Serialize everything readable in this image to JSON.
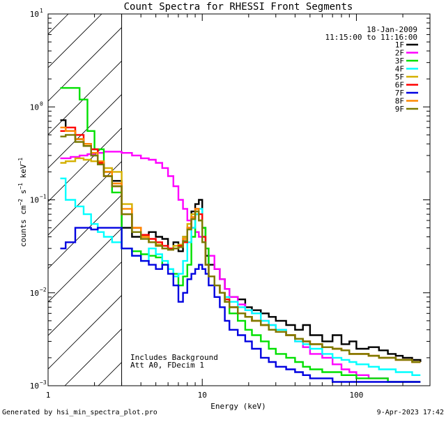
{
  "chart_data": {
    "type": "line",
    "title": "Count Spectra for RHESSI Front Segments",
    "xlabel": "Energy (keV)",
    "ylabel_parts": {
      "base": "counts cm",
      "exp1": "−2",
      "mid": " s",
      "exp2": "−1",
      "tail": " keV",
      "exp3": "−1"
    },
    "x_scale": "log",
    "y_scale": "log",
    "xlim": [
      1,
      300
    ],
    "ylim": [
      0.001,
      10
    ],
    "x_ticks": [
      {
        "value": 1,
        "label": "1"
      },
      {
        "value": 10,
        "label": "10"
      },
      {
        "value": 100,
        "label": "100"
      }
    ],
    "y_ticks": [
      {
        "value": 0.001,
        "base": "10",
        "exp": "−3"
      },
      {
        "value": 0.01,
        "base": "10",
        "exp": "−2"
      },
      {
        "value": 0.1,
        "base": "10",
        "exp": "−1"
      },
      {
        "value": 1,
        "base": "10",
        "exp": "0"
      },
      {
        "value": 10,
        "base": "10",
        "exp": "1"
      }
    ],
    "date": "18-Jan-2009",
    "time_range": "11:15:00 to 11:16:00",
    "hatched_region": {
      "x_min": 1,
      "x_max": 3
    },
    "annotations": [
      "Includes Background",
      "Att A0, FDecim 1"
    ],
    "series": [
      {
        "name": "1F",
        "color": "#000000",
        "x": [
          1.2,
          1.3,
          1.5,
          1.7,
          1.9,
          2.1,
          2.3,
          2.6,
          3.0,
          3.5,
          4.0,
          4.5,
          5.0,
          5.5,
          6.0,
          6.5,
          7.0,
          7.5,
          8.0,
          8.5,
          9.0,
          9.5,
          10.0,
          10.5,
          11.0,
          12,
          13,
          14,
          15,
          17,
          19,
          21,
          24,
          27,
          30,
          35,
          40,
          45,
          50,
          60,
          70,
          80,
          90,
          100,
          120,
          140,
          160,
          180,
          200,
          230,
          260
        ],
        "y": [
          0.72,
          0.55,
          0.45,
          0.38,
          0.3,
          0.25,
          0.2,
          0.16,
          0.05,
          0.04,
          0.042,
          0.045,
          0.04,
          0.038,
          0.03,
          0.035,
          0.028,
          0.04,
          0.05,
          0.075,
          0.09,
          0.1,
          0.05,
          0.025,
          0.02,
          0.018,
          0.014,
          0.011,
          0.009,
          0.0085,
          0.007,
          0.0065,
          0.006,
          0.0055,
          0.005,
          0.0045,
          0.004,
          0.0045,
          0.0035,
          0.003,
          0.0035,
          0.0028,
          0.003,
          0.0025,
          0.0026,
          0.0024,
          0.0022,
          0.0021,
          0.002,
          0.0019,
          0.0018
        ]
      },
      {
        "name": "2F",
        "color": "#ff00ff",
        "x": [
          1.2,
          1.4,
          1.6,
          1.8,
          2.0,
          2.3,
          2.6,
          3.0,
          3.5,
          4.0,
          4.5,
          5.0,
          5.5,
          6.0,
          6.5,
          7.0,
          7.5,
          8.0,
          8.5,
          9.0,
          9.5,
          10.0,
          10.5,
          11.0,
          12,
          13,
          14,
          15,
          17,
          19,
          21,
          24,
          27,
          30,
          35,
          40,
          45,
          50,
          60,
          70,
          80,
          90,
          100,
          120,
          140,
          160,
          180,
          200,
          230,
          260
        ],
        "y": [
          0.28,
          0.29,
          0.3,
          0.31,
          0.32,
          0.33,
          0.33,
          0.32,
          0.3,
          0.28,
          0.27,
          0.25,
          0.22,
          0.18,
          0.14,
          0.1,
          0.08,
          0.06,
          0.05,
          0.045,
          0.04,
          0.035,
          0.03,
          0.025,
          0.018,
          0.014,
          0.011,
          0.009,
          0.0075,
          0.0065,
          0.006,
          0.005,
          0.0045,
          0.004,
          0.0035,
          0.003,
          0.0026,
          0.0022,
          0.002,
          0.0017,
          0.0015,
          0.0014,
          0.0013,
          0.0012,
          0.0012,
          0.0011,
          0.0011,
          0.0011,
          0.0011,
          0.0011
        ]
      },
      {
        "name": "3F",
        "color": "#00e000",
        "x": [
          1.2,
          1.4,
          1.6,
          1.8,
          2.0,
          2.3,
          2.6,
          3.0,
          3.5,
          4.0,
          4.5,
          5.0,
          5.5,
          6.0,
          6.5,
          7.0,
          7.5,
          8.0,
          8.5,
          9.0,
          9.5,
          10.0,
          10.5,
          11.0,
          12,
          13,
          14,
          15,
          17,
          19,
          21,
          24,
          27,
          30,
          35,
          40,
          45,
          50,
          60,
          70,
          80,
          90,
          100,
          120,
          140,
          160,
          180,
          200,
          230,
          260
        ],
        "y": [
          1.6,
          1.6,
          1.2,
          0.55,
          0.35,
          0.2,
          0.12,
          0.03,
          0.028,
          0.026,
          0.025,
          0.024,
          0.02,
          0.018,
          0.016,
          0.012,
          0.015,
          0.02,
          0.04,
          0.07,
          0.06,
          0.05,
          0.03,
          0.015,
          0.012,
          0.01,
          0.008,
          0.006,
          0.005,
          0.004,
          0.0035,
          0.003,
          0.0025,
          0.0022,
          0.002,
          0.0018,
          0.0016,
          0.0015,
          0.0014,
          0.0014,
          0.0013,
          0.0013,
          0.0012,
          0.0012,
          0.0012,
          0.0011,
          0.0011,
          0.0011,
          0.0011,
          0.0011
        ]
      },
      {
        "name": "4F",
        "color": "#00ffff",
        "x": [
          1.2,
          1.3,
          1.5,
          1.7,
          1.9,
          2.1,
          2.3,
          2.6,
          3.0,
          3.5,
          4.0,
          4.5,
          5.0,
          5.5,
          6.0,
          6.5,
          7.0,
          7.5,
          8.0,
          8.5,
          9.0,
          9.5,
          10.0,
          10.5,
          11.0,
          12,
          13,
          14,
          15,
          17,
          19,
          21,
          24,
          27,
          30,
          35,
          40,
          45,
          50,
          60,
          70,
          80,
          90,
          100,
          120,
          140,
          160,
          180,
          200,
          230,
          260
        ],
        "y": [
          0.17,
          0.1,
          0.085,
          0.07,
          0.055,
          0.045,
          0.04,
          0.035,
          0.03,
          0.025,
          0.022,
          0.03,
          0.026,
          0.022,
          0.018,
          0.015,
          0.016,
          0.022,
          0.035,
          0.05,
          0.07,
          0.08,
          0.04,
          0.02,
          0.015,
          0.012,
          0.01,
          0.009,
          0.008,
          0.007,
          0.0065,
          0.006,
          0.005,
          0.0045,
          0.004,
          0.0035,
          0.003,
          0.0028,
          0.0025,
          0.0022,
          0.002,
          0.0019,
          0.0018,
          0.0017,
          0.0016,
          0.0015,
          0.0015,
          0.0014,
          0.0014,
          0.0013,
          0.0013
        ]
      },
      {
        "name": "5F",
        "color": "#d4b000",
        "x": [
          1.2,
          1.3,
          1.5,
          1.7,
          1.9,
          2.1,
          2.3,
          2.6,
          3.0,
          3.5,
          4.0,
          4.5,
          5.0,
          5.5,
          6.0,
          6.5,
          7.0,
          7.5,
          8.0,
          8.5,
          9.0,
          9.5,
          10.0,
          10.5,
          11.0,
          12,
          13,
          14,
          15,
          17,
          19,
          21,
          24,
          27,
          30,
          35,
          40,
          45,
          50,
          60,
          70,
          80,
          90,
          100,
          120,
          140,
          160,
          180,
          200,
          230,
          260
        ],
        "y": [
          0.25,
          0.26,
          0.28,
          0.27,
          0.26,
          0.24,
          0.22,
          0.2,
          0.09,
          0.05,
          0.04,
          0.035,
          0.033,
          0.03,
          0.03,
          0.032,
          0.033,
          0.04,
          0.055,
          0.07,
          0.075,
          0.06,
          0.035,
          0.02,
          0.015,
          0.012,
          0.01,
          0.008,
          0.007,
          0.006,
          0.0055,
          0.005,
          0.0045,
          0.004,
          0.0038,
          0.0035,
          0.0032,
          0.003,
          0.0028,
          0.0026,
          0.0025,
          0.0024,
          0.0022,
          0.0022,
          0.0021,
          0.002,
          0.002,
          0.0019,
          0.0019,
          0.0018,
          0.0018
        ]
      },
      {
        "name": "6F",
        "color": "#ff0000",
        "x": [
          1.2,
          1.3,
          1.5,
          1.7,
          1.9,
          2.1,
          2.3,
          2.6,
          3.0,
          3.5,
          4.0,
          4.5,
          5.0,
          5.5,
          6.0,
          6.5,
          7.0,
          7.5,
          8.0,
          8.5,
          9.0,
          9.5,
          10.0,
          10.5,
          11.0,
          12,
          13,
          14,
          15,
          17,
          19,
          21,
          24,
          27,
          30,
          35,
          40,
          45,
          50,
          60,
          70,
          80,
          90,
          100,
          120,
          140,
          160,
          180,
          200,
          230,
          260
        ],
        "y": [
          0.55,
          0.6,
          0.5,
          0.4,
          0.35,
          0.25,
          0.18,
          0.14,
          0.07,
          0.05,
          0.042,
          0.038,
          0.035,
          0.032,
          0.03,
          0.03,
          0.032,
          0.035,
          0.05,
          0.065,
          0.08,
          0.07,
          0.04,
          0.02,
          0.015,
          0.012,
          0.01,
          0.0085,
          0.007,
          0.006,
          0.0055,
          0.005,
          0.0045,
          0.004,
          0.0038,
          0.0035,
          0.0032,
          0.003,
          0.0028,
          0.0026,
          0.0025,
          0.0024,
          0.0022,
          0.0022,
          0.0021,
          0.002,
          0.002,
          0.0019,
          0.0019,
          0.0018,
          0.0018
        ]
      },
      {
        "name": "7F",
        "color": "#0000e0",
        "x": [
          1.2,
          1.3,
          1.5,
          1.7,
          1.9,
          2.1,
          2.3,
          2.6,
          3.0,
          3.5,
          4.0,
          4.5,
          5.0,
          5.5,
          6.0,
          6.5,
          7.0,
          7.5,
          8.0,
          8.5,
          9.0,
          9.5,
          10.0,
          10.5,
          11.0,
          12,
          13,
          14,
          15,
          17,
          19,
          21,
          24,
          27,
          30,
          35,
          40,
          45,
          50,
          60,
          70,
          80,
          90,
          100,
          120,
          140,
          160,
          180,
          200,
          230,
          260
        ],
        "y": [
          0.03,
          0.035,
          0.05,
          0.05,
          0.048,
          0.05,
          0.05,
          0.05,
          0.03,
          0.025,
          0.022,
          0.02,
          0.018,
          0.02,
          0.016,
          0.012,
          0.008,
          0.01,
          0.014,
          0.016,
          0.018,
          0.02,
          0.018,
          0.016,
          0.012,
          0.009,
          0.007,
          0.005,
          0.004,
          0.0035,
          0.003,
          0.0025,
          0.002,
          0.0018,
          0.0016,
          0.0015,
          0.0014,
          0.0013,
          0.0012,
          0.0012,
          0.0011,
          0.0011,
          0.0011,
          0.0011,
          0.0011,
          0.0011,
          0.0011,
          0.0011,
          0.0011,
          0.0011,
          0.0011
        ]
      },
      {
        "name": "8F",
        "color": "#ff8800",
        "x": [
          1.2,
          1.3,
          1.5,
          1.7,
          1.9,
          2.1,
          2.3,
          2.6,
          3.0,
          3.5,
          4.0,
          4.5,
          5.0,
          5.5,
          6.0,
          6.5,
          7.0,
          7.5,
          8.0,
          8.5,
          9.0,
          9.5,
          10.0,
          10.5,
          11.0,
          12,
          13,
          14,
          15,
          17,
          19,
          21,
          24,
          27,
          30,
          35,
          40,
          45,
          50,
          60,
          70,
          80,
          90,
          100,
          120,
          140,
          160,
          180,
          200,
          230,
          260
        ],
        "y": [
          0.6,
          0.55,
          0.45,
          0.4,
          0.32,
          0.26,
          0.2,
          0.15,
          0.08,
          0.05,
          0.04,
          0.035,
          0.032,
          0.03,
          0.029,
          0.03,
          0.031,
          0.038,
          0.05,
          0.065,
          0.08,
          0.06,
          0.035,
          0.02,
          0.015,
          0.012,
          0.01,
          0.008,
          0.007,
          0.006,
          0.0055,
          0.005,
          0.0045,
          0.004,
          0.0038,
          0.0035,
          0.0032,
          0.003,
          0.0028,
          0.0026,
          0.0025,
          0.0024,
          0.0022,
          0.0022,
          0.0021,
          0.002,
          0.002,
          0.0019,
          0.0019,
          0.0018,
          0.0018
        ]
      },
      {
        "name": "9F",
        "color": "#7a7a00",
        "x": [
          1.2,
          1.3,
          1.5,
          1.7,
          1.9,
          2.1,
          2.3,
          2.6,
          3.0,
          3.5,
          4.0,
          4.5,
          5.0,
          5.5,
          6.0,
          6.5,
          7.0,
          7.5,
          8.0,
          8.5,
          9.0,
          9.5,
          10.0,
          10.5,
          11.0,
          12,
          13,
          14,
          15,
          17,
          19,
          21,
          24,
          27,
          30,
          35,
          40,
          45,
          50,
          60,
          70,
          80,
          90,
          100,
          120,
          140,
          160,
          180,
          200,
          230,
          260
        ],
        "y": [
          0.48,
          0.5,
          0.42,
          0.38,
          0.3,
          0.24,
          0.18,
          0.14,
          0.07,
          0.045,
          0.038,
          0.035,
          0.032,
          0.03,
          0.029,
          0.03,
          0.031,
          0.036,
          0.048,
          0.062,
          0.075,
          0.06,
          0.035,
          0.02,
          0.015,
          0.012,
          0.01,
          0.008,
          0.007,
          0.006,
          0.0055,
          0.005,
          0.0045,
          0.004,
          0.0038,
          0.0035,
          0.0032,
          0.003,
          0.0028,
          0.0026,
          0.0025,
          0.0024,
          0.0022,
          0.0022,
          0.0021,
          0.002,
          0.002,
          0.0019,
          0.0019,
          0.0018,
          0.0018
        ]
      }
    ]
  },
  "footer": {
    "generated_by": "Generated by hsi_min_spectra_plot.pro",
    "timestamp": "9-Apr-2023 17:42"
  }
}
